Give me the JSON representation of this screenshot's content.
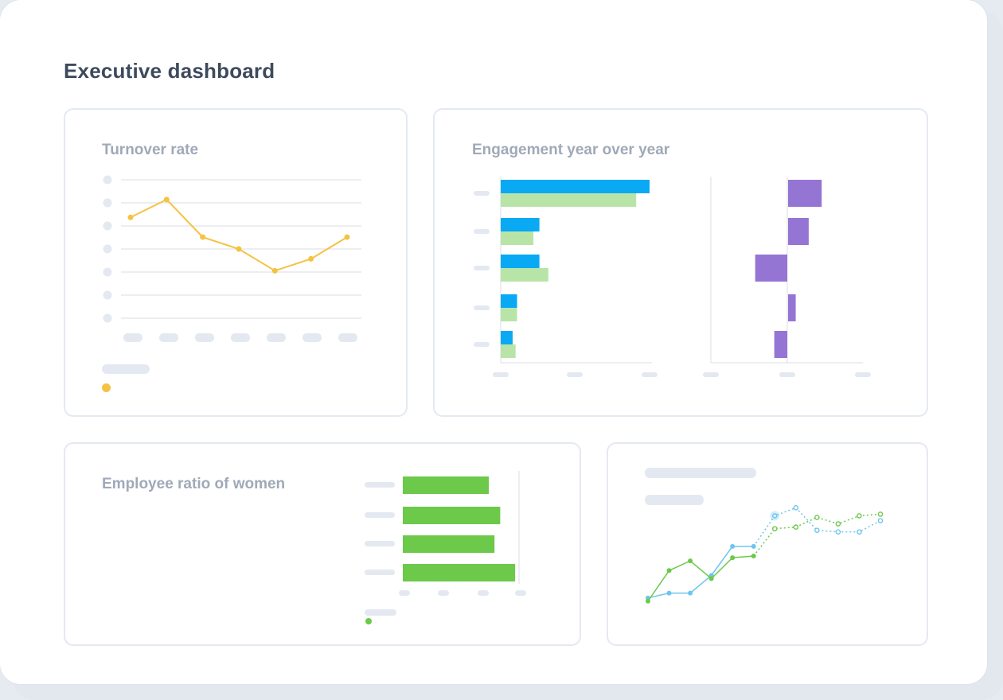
{
  "page": {
    "title": "Executive dashboard"
  },
  "colors": {
    "yellow": "#f5c242",
    "blue": "#09a9f4",
    "light_green": "#b9e4a8",
    "purple": "#9575d4",
    "green": "#6cc94a",
    "sky": "#6cc6ee",
    "placeholder": "#e4e9f1",
    "grid": "#d9dee6"
  },
  "cards": {
    "turnover": {
      "title": "Turnover rate",
      "chart_data": {
        "type": "line",
        "series": [
          {
            "values": [
              5.1,
              6.0,
              4.1,
              3.5,
              2.4,
              3.0,
              4.1
            ]
          }
        ],
        "ylim": [
          0,
          7
        ],
        "grid": true,
        "tick_labels": "placeholder"
      }
    },
    "engagement": {
      "title": "Engagement year over year",
      "chart_data": [
        {
          "type": "bar",
          "orientation": "horizontal",
          "series": [
            {
              "values": [
                100,
                26,
                26,
                11,
                8
              ]
            },
            {
              "values": [
                91,
                22,
                32,
                11,
                10
              ]
            }
          ],
          "xlim": [
            0,
            100
          ]
        },
        {
          "type": "bar",
          "orientation": "horizontal",
          "series": [
            {
              "values": [
                44,
                27,
                -42,
                10,
                -17
              ]
            }
          ],
          "xlim": [
            -100,
            100
          ]
        }
      ]
    },
    "women": {
      "title": "Employee ratio of women",
      "chart_data": {
        "type": "bar",
        "orientation": "horizontal",
        "series": [
          {
            "values": [
              75,
              85,
              80,
              98
            ]
          }
        ],
        "xlim": [
          0,
          100
        ]
      }
    },
    "trend": {
      "chart_data": {
        "type": "line",
        "series": [
          {
            "color": "sky",
            "values": [
              1.2,
              1.5,
              1.5,
              2.6,
              4.4,
              4.4,
              6.3,
              6.8,
              5.4,
              5.3,
              5.3,
              6.0
            ],
            "dashed_from": 5
          },
          {
            "color": "green",
            "values": [
              1.0,
              2.9,
              3.5,
              2.4,
              3.7,
              3.8,
              5.5,
              5.6,
              6.2,
              5.8,
              6.3,
              6.4
            ],
            "dashed_from": 5
          }
        ],
        "ylim": [
          0,
          8
        ]
      }
    }
  }
}
